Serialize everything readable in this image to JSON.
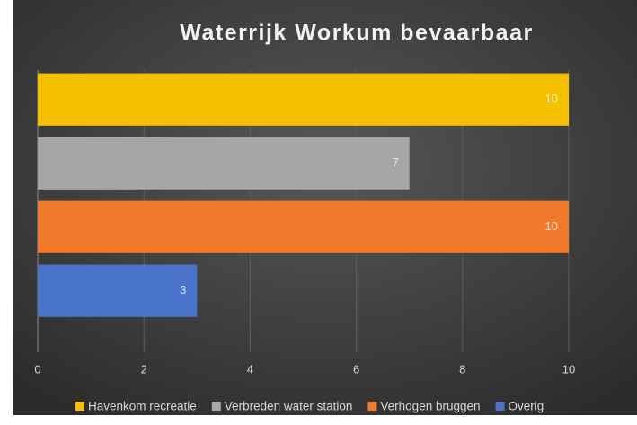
{
  "chart_data": {
    "type": "bar",
    "orientation": "horizontal",
    "title": "Waterrijk Workum bevaarbaar",
    "series": [
      {
        "name": "Havenkom recreatie",
        "color": "#f5c000",
        "values": [
          10
        ]
      },
      {
        "name": "Verbreden water station",
        "color": "#a6a6a6",
        "values": [
          7
        ]
      },
      {
        "name": "Verhogen bruggen",
        "color": "#f07b2c",
        "values": [
          10
        ]
      },
      {
        "name": "Overig",
        "color": "#4a74cc",
        "values": [
          3
        ]
      }
    ],
    "xlim": [
      0,
      10
    ],
    "xticks": [
      0,
      2,
      4,
      6,
      8,
      10
    ],
    "grid": true,
    "legend": "bottom"
  }
}
